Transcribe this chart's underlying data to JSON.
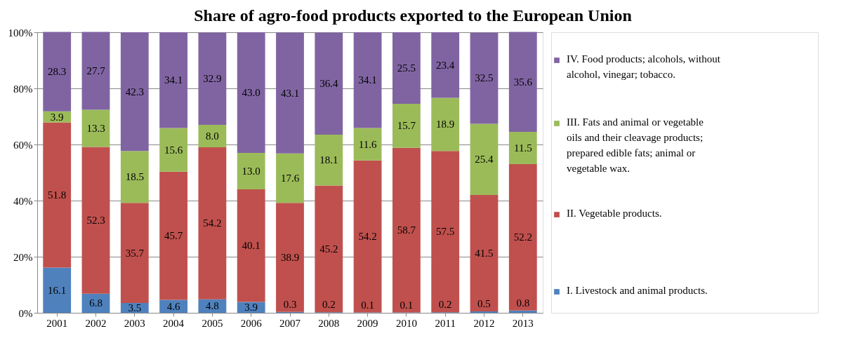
{
  "chart_data": {
    "type": "bar",
    "title": "Share of agro-food products exported to the European Union",
    "categories": [
      "2001",
      "2002",
      "2003",
      "2004",
      "2005",
      "2006",
      "2007",
      "2008",
      "2009",
      "2010",
      "2011",
      "2012",
      "2013"
    ],
    "stacked": true,
    "grid": "y",
    "legend": "right",
    "ylim": [
      0,
      100
    ],
    "yticks": [
      {
        "value": 0,
        "label": "0%"
      },
      {
        "value": 20,
        "label": "20%"
      },
      {
        "value": 40,
        "label": "40%"
      },
      {
        "value": 60,
        "label": "60%"
      },
      {
        "value": 80,
        "label": "80%"
      },
      {
        "value": 100,
        "label": "100%"
      }
    ],
    "series": [
      {
        "name": "I. Livestock and animal products.",
        "color": "#4f81bd",
        "values": [
          16.1,
          6.8,
          3.5,
          4.6,
          4.8,
          3.9,
          0.3,
          0.2,
          0.1,
          0.1,
          0.2,
          0.5,
          0.8
        ],
        "value_labels": [
          "16.1",
          "6.8",
          "3.5",
          "4.6",
          "4.8",
          "3.9",
          "0.3",
          "0.2",
          "0.1",
          "0.1",
          "0.2",
          "0.5",
          "0.8"
        ]
      },
      {
        "name": "II. Vegetable products.",
        "color": "#c0504d",
        "values": [
          51.8,
          52.3,
          35.7,
          45.7,
          54.2,
          40.1,
          38.9,
          45.2,
          54.2,
          58.7,
          57.5,
          41.5,
          52.2
        ],
        "value_labels": [
          "51.8",
          "52.3",
          "35.7",
          "45.7",
          "54.2",
          "40.1",
          "38.9",
          "45.2",
          "54.2",
          "58.7",
          "57.5",
          "41.5",
          "52.2"
        ]
      },
      {
        "name": "III. Fats and animal or vegetable oils and their cleavage products; prepared edible fats; animal or vegetable wax.",
        "color": "#9bbb59",
        "values": [
          3.9,
          13.3,
          18.5,
          15.6,
          8.0,
          13.0,
          17.6,
          18.1,
          11.6,
          15.7,
          18.9,
          25.4,
          11.5
        ],
        "value_labels": [
          "3.9",
          "13.3",
          "18.5",
          "15.6",
          "8.0",
          "13.0",
          "17.6",
          "18.1",
          "11.6",
          "15.7",
          "18.9",
          "25.4",
          "11.5"
        ]
      },
      {
        "name": "IV. Food products; alcohols, without alcohol, vinegar; tobacco.",
        "color": "#8064a2",
        "values": [
          28.3,
          27.7,
          42.3,
          34.1,
          32.9,
          43.0,
          43.1,
          36.4,
          34.1,
          25.5,
          23.4,
          32.5,
          35.6
        ],
        "value_labels": [
          "28.3",
          "27.7",
          "42.3",
          "34.1",
          "32.9",
          "43.0",
          "43.1",
          "36.4",
          "34.1",
          "25.5",
          "23.4",
          "32.5",
          "35.6"
        ]
      }
    ]
  }
}
